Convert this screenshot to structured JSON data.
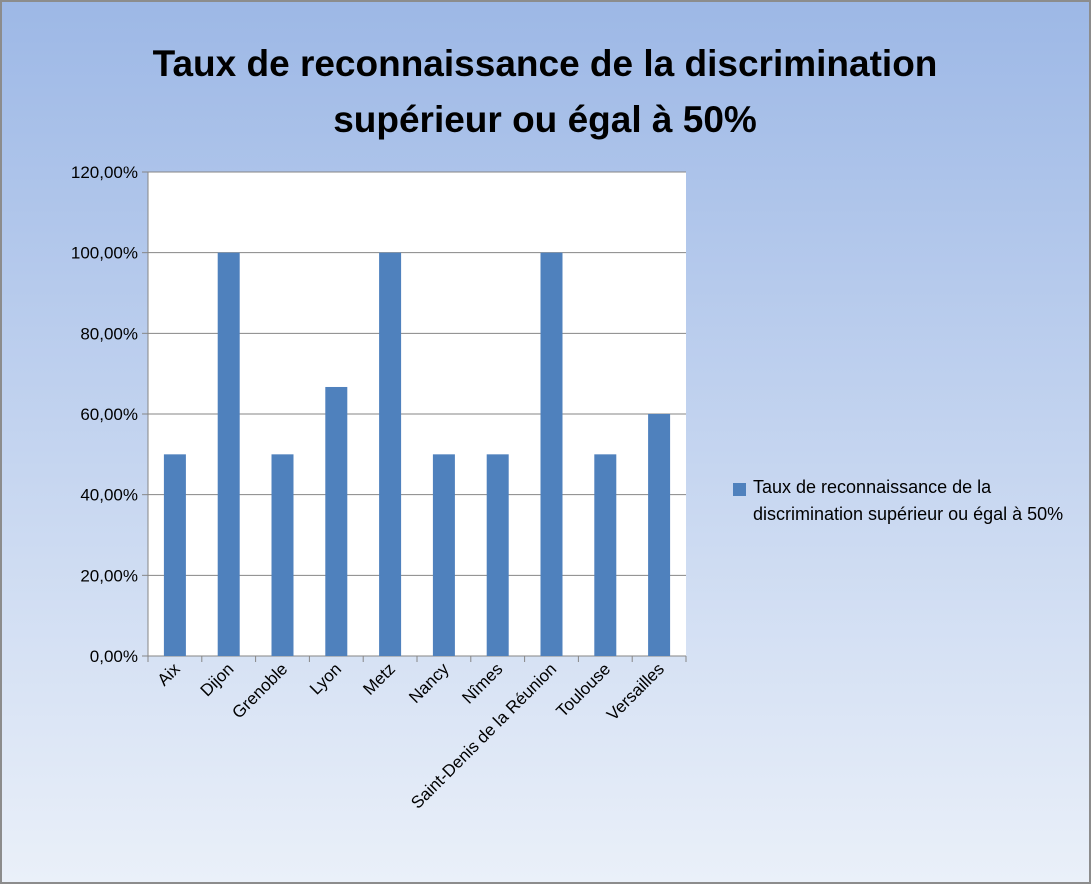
{
  "chart_data": {
    "type": "bar",
    "title": "Taux de reconnaissance de la discrimination supérieur ou égal à 50%",
    "categories": [
      "Aix",
      "Dijon",
      "Grenoble",
      "Lyon",
      "Metz",
      "Nancy",
      "Nîmes",
      "Saint-Denis de la Réunion",
      "Toulouse",
      "Versailles"
    ],
    "series": [
      {
        "name": "Taux de reconnaissance de la discrimination supérieur ou égal à 50%",
        "color": "#4f81bd",
        "values": [
          50,
          100,
          50,
          66.7,
          100,
          50,
          50,
          100,
          50,
          60
        ]
      }
    ],
    "ylim": [
      0,
      120
    ],
    "yticks": [
      {
        "value": 0,
        "label": "0,00%"
      },
      {
        "value": 20,
        "label": "20,00%"
      },
      {
        "value": 40,
        "label": "40,00%"
      },
      {
        "value": 60,
        "label": "60,00%"
      },
      {
        "value": 80,
        "label": "80,00%"
      },
      {
        "value": 100,
        "label": "100,00%"
      },
      {
        "value": 120,
        "label": "120,00%"
      }
    ],
    "grid": true,
    "legend": "right"
  }
}
